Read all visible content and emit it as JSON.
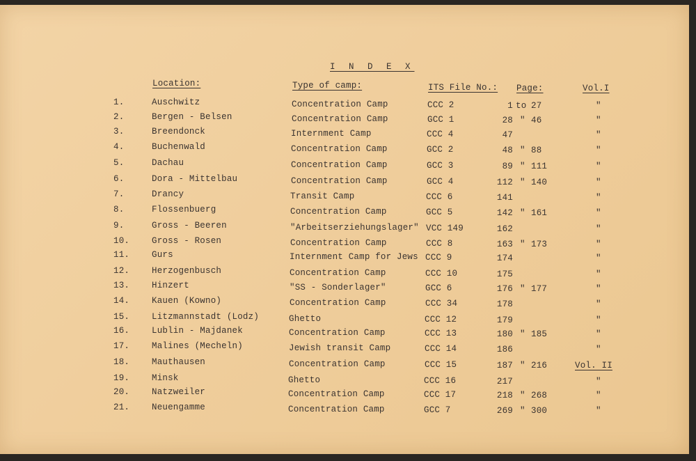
{
  "title": "I N D E X",
  "headers": {
    "location": "Location:",
    "type": "Type of camp:",
    "file": "ITS File No.:",
    "page": "Page:",
    "vol": "Vol.I"
  },
  "rows": [
    {
      "num": "1.",
      "location": "Auschwitz",
      "type": "Concentration Camp",
      "file": "CCC 2",
      "page_from": "1",
      "sep": "to",
      "page_to": "27",
      "vol": "\""
    },
    {
      "num": "2.",
      "location": "Bergen - Belsen",
      "type": "Concentration Camp",
      "file": "GCC 1",
      "page_from": "28",
      "sep": "\"",
      "page_to": "46",
      "vol": "\""
    },
    {
      "num": "3.",
      "location": "Breendonck",
      "type": "Internment Camp",
      "file": "CCC 4",
      "page_from": "47",
      "sep": "",
      "page_to": "",
      "vol": "\""
    },
    {
      "num": "4.",
      "location": "Buchenwald",
      "type": "Concentration Camp",
      "file": "GCC 2",
      "page_from": "48",
      "sep": "\"",
      "page_to": "88",
      "vol": "\""
    },
    {
      "num": "5.",
      "location": "Dachau",
      "type": "Concentration Camp",
      "file": "GCC 3",
      "page_from": "89",
      "sep": "\"",
      "page_to": "111",
      "vol": "\""
    },
    {
      "num": "6.",
      "location": "Dora - Mittelbau",
      "type": "Concentration Camp",
      "file": "GCC 4",
      "page_from": "112",
      "sep": "\"",
      "page_to": "140",
      "vol": "\""
    },
    {
      "num": "7.",
      "location": "Drancy",
      "type": "Transit Camp",
      "file": "CCC 6",
      "page_from": "141",
      "sep": "",
      "page_to": "",
      "vol": "\""
    },
    {
      "num": "8.",
      "location": "Flossenbuerg",
      "type": "Concentration Camp",
      "file": "GCC 5",
      "page_from": "142",
      "sep": "\"",
      "page_to": "161",
      "vol": "\""
    },
    {
      "num": "9.",
      "location": "Gross - Beeren",
      "type": "\"Arbeitserziehungslager\"",
      "file": "VCC 149",
      "page_from": "162",
      "sep": "",
      "page_to": "",
      "vol": "\""
    },
    {
      "num": "10.",
      "location": "Gross - Rosen",
      "type": "Concentration Camp",
      "file": "CCC 8",
      "page_from": "163",
      "sep": "\"",
      "page_to": "173",
      "vol": "\""
    },
    {
      "num": "11.",
      "location": "Gurs",
      "type": "Internment Camp for Jews",
      "file": "CCC 9",
      "page_from": "174",
      "sep": "",
      "page_to": "",
      "vol": "\""
    },
    {
      "num": "12.",
      "location": "Herzogenbusch",
      "type": "Concentration Camp",
      "file": "CCC 10",
      "page_from": "175",
      "sep": "",
      "page_to": "",
      "vol": "\""
    },
    {
      "num": "13.",
      "location": "Hinzert",
      "type": "\"SS - Sonderlager\"",
      "file": "GCC 6",
      "page_from": "176",
      "sep": "\"",
      "page_to": "177",
      "vol": "\""
    },
    {
      "num": "14.",
      "location": "Kauen (Kowno)",
      "type": "Concentration Camp",
      "file": "CCC 34",
      "page_from": "178",
      "sep": "",
      "page_to": "",
      "vol": "\""
    },
    {
      "num": "15.",
      "location": "Litzmannstadt (Lodz)",
      "type": "Ghetto",
      "file": "CCC 12",
      "page_from": "179",
      "sep": "",
      "page_to": "",
      "vol": "\""
    },
    {
      "num": "16.",
      "location": "Lublin - Majdanek",
      "type": "Concentration Camp",
      "file": "CCC 13",
      "page_from": "180",
      "sep": "\"",
      "page_to": "185",
      "vol": "\""
    },
    {
      "num": "17.",
      "location": "Malines (Mecheln)",
      "type": "Jewish transit Camp",
      "file": "CCC 14",
      "page_from": "186",
      "sep": "",
      "page_to": "",
      "vol": "\""
    },
    {
      "num": "18.",
      "location": "Mauthausen",
      "type": "Concentration Camp",
      "file": "CCC 15",
      "page_from": "187",
      "sep": "\"",
      "page_to": "216",
      "vol": "Vol. II"
    },
    {
      "num": "19.",
      "location": "Minsk",
      "type": "Ghetto",
      "file": "CCC 16",
      "page_from": "217",
      "sep": "",
      "page_to": "",
      "vol": "\""
    },
    {
      "num": "20.",
      "location": "Natzweiler",
      "type": "Concentration Camp",
      "file": "CCC 17",
      "page_from": "218",
      "sep": "\"",
      "page_to": "268",
      "vol": "\""
    },
    {
      "num": "21.",
      "location": "Neuengamme",
      "type": "Concentration Camp",
      "file": "GCC 7",
      "page_from": "269",
      "sep": "\"",
      "page_to": "300",
      "vol": "\""
    }
  ]
}
